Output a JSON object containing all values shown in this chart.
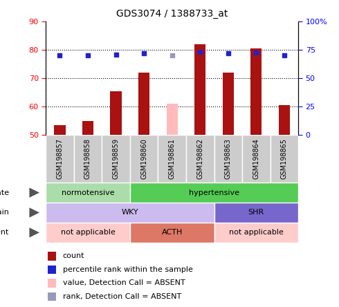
{
  "title": "GDS3074 / 1388733_at",
  "samples": [
    "GSM198857",
    "GSM198858",
    "GSM198859",
    "GSM198860",
    "GSM198861",
    "GSM198862",
    "GSM198863",
    "GSM198864",
    "GSM198865"
  ],
  "count_values": [
    53.5,
    55.0,
    65.5,
    72.0,
    null,
    82.0,
    72.0,
    80.5,
    60.5
  ],
  "count_absent": [
    null,
    null,
    null,
    null,
    61.0,
    null,
    null,
    null,
    null
  ],
  "percentile_values": [
    70.5,
    70.0,
    71.0,
    72.0,
    null,
    73.0,
    72.0,
    72.5,
    70.0
  ],
  "percentile_absent": [
    null,
    null,
    null,
    null,
    70.5,
    null,
    null,
    null,
    null
  ],
  "ylim_left": [
    50,
    90
  ],
  "yticks_left": [
    50,
    60,
    70,
    80,
    90
  ],
  "yticks_right": [
    0,
    25,
    50,
    75,
    100
  ],
  "ytick_labels_right": [
    "0",
    "25",
    "50",
    "75",
    "100%"
  ],
  "bar_color_red": "#aa1111",
  "bar_color_pink": "#ffbbbb",
  "dot_color_blue": "#2222cc",
  "dot_color_lightblue": "#9999bb",
  "bar_width": 0.4,
  "disease_state_groups": [
    {
      "label": "normotensive",
      "start": 0,
      "end": 3,
      "color": "#aaddaa"
    },
    {
      "label": "hypertensive",
      "start": 3,
      "end": 9,
      "color": "#55cc55"
    }
  ],
  "strain_groups": [
    {
      "label": "WKY",
      "start": 0,
      "end": 6,
      "color": "#ccbbee"
    },
    {
      "label": "SHR",
      "start": 6,
      "end": 9,
      "color": "#7766cc"
    }
  ],
  "agent_groups": [
    {
      "label": "not applicable",
      "start": 0,
      "end": 3,
      "color": "#ffcccc"
    },
    {
      "label": "ACTH",
      "start": 3,
      "end": 6,
      "color": "#dd7766"
    },
    {
      "label": "not applicable",
      "start": 6,
      "end": 9,
      "color": "#ffcccc"
    }
  ],
  "legend_items": [
    {
      "color": "#aa1111",
      "label": "count"
    },
    {
      "color": "#2222cc",
      "label": "percentile rank within the sample"
    },
    {
      "color": "#ffbbbb",
      "label": "value, Detection Call = ABSENT"
    },
    {
      "color": "#9999bb",
      "label": "rank, Detection Call = ABSENT"
    }
  ],
  "figsize": [
    4.9,
    4.44
  ],
  "dpi": 100
}
